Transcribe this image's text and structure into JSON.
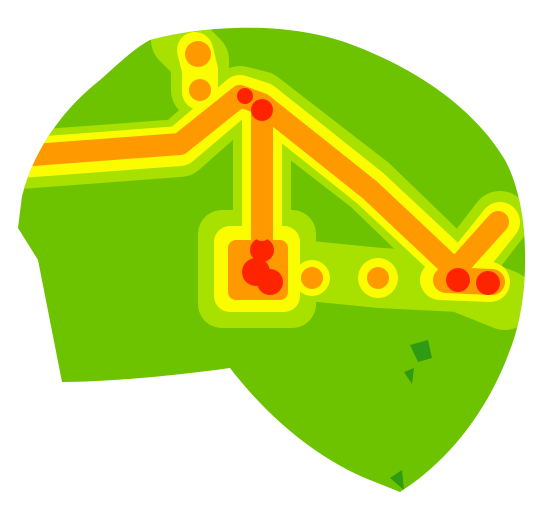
{
  "map": {
    "type": "heatmap-overlay",
    "colors": {
      "background": "#ffffff",
      "base": "#6ec300",
      "dark_patch": "#2f9b12",
      "low": "#a8e000",
      "mid": "#fcfc00",
      "high": "#ff9900",
      "peak": "#ff2400"
    },
    "legend": []
  }
}
